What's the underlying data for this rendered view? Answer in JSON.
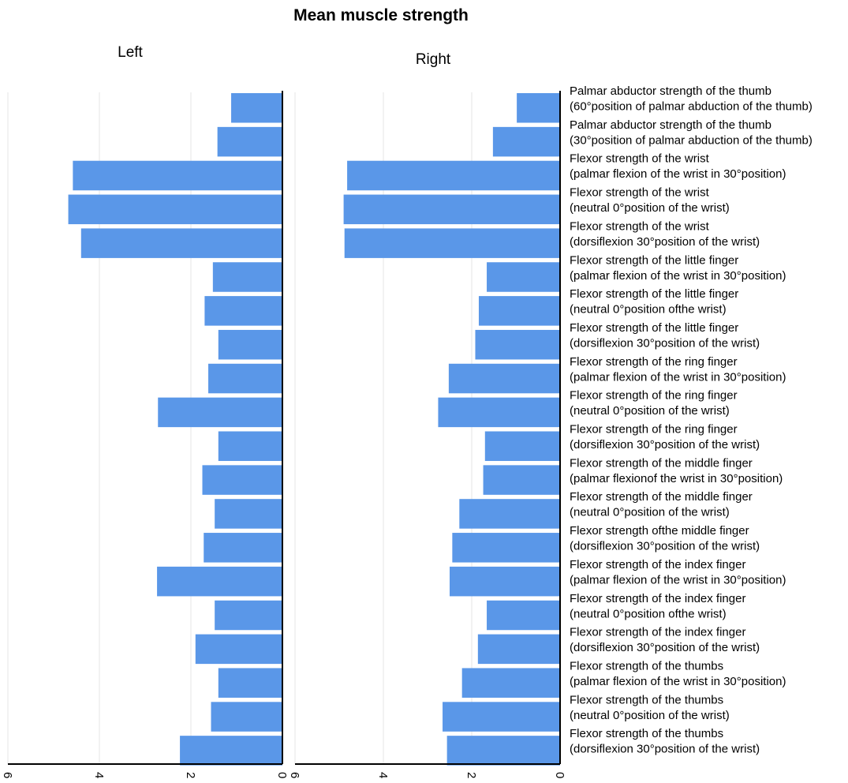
{
  "chart_data": {
    "type": "bar",
    "orientation": "horizontal",
    "title": "Mean muscle strength",
    "grid": true,
    "categories": [
      [
        "Palmar abductor strength of the thumb",
        "(60°position of palmar abduction of the thumb)"
      ],
      [
        "Palmar abductor strength of the thumb",
        "(30°position of palmar abduction of the thumb)"
      ],
      [
        "Flexor strength of the wrist",
        "(palmar flexion of the wrist in 30°position)"
      ],
      [
        "Flexor strength of the wrist",
        "(neutral 0°position of the wrist)"
      ],
      [
        "Flexor strength of the wrist",
        "(dorsiflexion 30°position of the wrist)"
      ],
      [
        "Flexor strength of the little finger",
        "(palmar flexion of the wrist in 30°position)"
      ],
      [
        "Flexor strength of the little finger",
        "(neutral 0°position ofthe wrist)"
      ],
      [
        "Flexor strength of the little finger",
        "(dorsiflexion 30°position of the wrist)"
      ],
      [
        "Flexor strength of the ring finger",
        "(palmar flexion of the wrist in 30°position)"
      ],
      [
        "Flexor strength of the ring finger",
        "(neutral 0°position of the wrist)"
      ],
      [
        "Flexor strength of the ring finger",
        "(dorsiflexion 30°position of the wrist)"
      ],
      [
        "Flexor strength of the middle finger",
        "(palmar flexionof the wrist in 30°position)"
      ],
      [
        "Flexor strength of the middle finger",
        "(neutral 0°position of the wrist)"
      ],
      [
        "Flexor strength ofthe middle finger",
        "(dorsiflexion 30°position of the wrist)"
      ],
      [
        "Flexor strength of the index finger",
        "(palmar flexion of the wrist in 30°position)"
      ],
      [
        "Flexor strength of the index finger",
        "(neutral 0°position ofthe wrist)"
      ],
      [
        "Flexor strength of the index finger",
        "(dorsiflexion 30°position of the wrist)"
      ],
      [
        "Flexor strength of the thumbs",
        "(palmar flexion of the wrist in 30°position)"
      ],
      [
        "Flexor strength of the thumbs",
        "(neutral 0°position of the wrist)"
      ],
      [
        "Flexor strength of the thumbs",
        "(dorsiflexion 30°position of the wrist)"
      ]
    ],
    "panels": [
      {
        "name": "Left",
        "xlim": [
          0,
          6
        ],
        "x_reversed": true,
        "ticks": [
          "0",
          "2",
          "4",
          "6"
        ],
        "values": [
          1.12,
          1.42,
          4.58,
          4.68,
          4.4,
          1.52,
          1.7,
          1.4,
          1.62,
          2.72,
          1.4,
          1.75,
          1.48,
          1.72,
          2.74,
          1.48,
          1.9,
          1.4,
          1.56,
          2.24
        ]
      },
      {
        "name": "Right",
        "xlim": [
          0,
          6
        ],
        "x_reversed": true,
        "ticks": [
          "0",
          "2",
          "4",
          "6"
        ],
        "values": [
          0.98,
          1.52,
          4.82,
          4.9,
          4.88,
          1.66,
          1.84,
          1.92,
          2.52,
          2.76,
          1.7,
          1.74,
          2.28,
          2.44,
          2.5,
          1.66,
          1.86,
          2.22,
          2.66,
          2.56
        ]
      }
    ],
    "colors": {
      "bar": "#5a97e8",
      "grid": "#e6e6e6",
      "axis": "#000000"
    }
  }
}
